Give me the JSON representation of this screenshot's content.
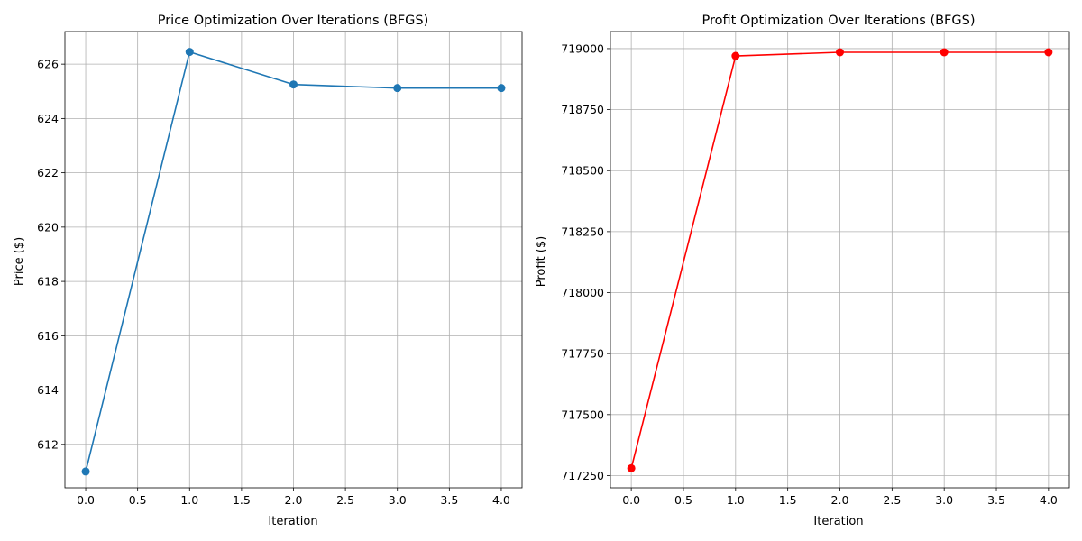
{
  "chart_data": [
    {
      "type": "line",
      "title": "Price Optimization Over Iterations (BFGS)",
      "xlabel": "Iteration",
      "ylabel": "Price ($)",
      "grid": true,
      "xlim": [
        -0.2,
        4.2
      ],
      "ylim": [
        610.4,
        627.2
      ],
      "x_ticks": [
        "0.0",
        "0.5",
        "1.0",
        "1.5",
        "2.0",
        "2.5",
        "3.0",
        "3.5",
        "4.0"
      ],
      "y_ticks": [
        "612",
        "614",
        "616",
        "618",
        "620",
        "622",
        "624",
        "626"
      ],
      "series": [
        {
          "color": "#1f77b4",
          "marker": "circle",
          "x": [
            0,
            1,
            2,
            3,
            4
          ],
          "y": [
            611.0,
            626.45,
            625.25,
            625.12,
            625.12
          ]
        }
      ]
    },
    {
      "type": "line",
      "title": "Profit Optimization Over Iterations (BFGS)",
      "xlabel": "Iteration",
      "ylabel": "Profit ($)",
      "grid": true,
      "xlim": [
        -0.2,
        4.2
      ],
      "ylim": [
        717200,
        719070
      ],
      "x_ticks": [
        "0.0",
        "0.5",
        "1.0",
        "1.5",
        "2.0",
        "2.5",
        "3.0",
        "3.5",
        "4.0"
      ],
      "y_ticks": [
        "717250",
        "717500",
        "717750",
        "718000",
        "718250",
        "718500",
        "718750",
        "719000"
      ],
      "series": [
        {
          "color": "#ff0000",
          "marker": "circle",
          "x": [
            0,
            1,
            2,
            3,
            4
          ],
          "y": [
            717280,
            718970,
            718985,
            718985,
            718985
          ]
        }
      ]
    }
  ]
}
